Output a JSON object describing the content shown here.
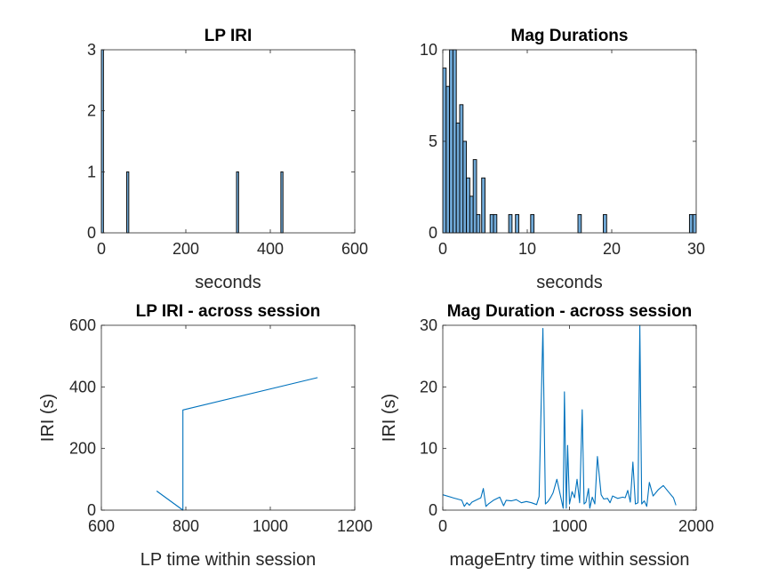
{
  "chart_data": [
    {
      "id": "lp-iri-hist",
      "type": "bar",
      "title": "LP IRI",
      "xlabel": "seconds",
      "ylabel": "",
      "xlim": [
        0,
        600
      ],
      "ylim": [
        0,
        3
      ],
      "xticks": [
        0,
        200,
        400,
        600
      ],
      "yticks": [
        0,
        1,
        2,
        3
      ],
      "bin_width": 5,
      "bins": [
        {
          "x": 0,
          "value": 3
        },
        {
          "x": 60,
          "value": 1
        },
        {
          "x": 320,
          "value": 1
        },
        {
          "x": 425,
          "value": 1
        }
      ],
      "bar_color": "#6fa8d6",
      "edge_color": "#000000"
    },
    {
      "id": "mag-dur-hist",
      "type": "bar",
      "title": "Mag Durations",
      "xlabel": "seconds",
      "ylabel": "",
      "xlim": [
        0,
        30
      ],
      "ylim": [
        0,
        10
      ],
      "xticks": [
        0,
        10,
        20,
        30
      ],
      "yticks": [
        0,
        5,
        10
      ],
      "bin_width": 0.4,
      "bins": [
        {
          "x": 0.0,
          "value": 9
        },
        {
          "x": 0.4,
          "value": 8
        },
        {
          "x": 0.8,
          "value": 10
        },
        {
          "x": 1.2,
          "value": 10
        },
        {
          "x": 1.6,
          "value": 6
        },
        {
          "x": 2.0,
          "value": 7
        },
        {
          "x": 2.4,
          "value": 5
        },
        {
          "x": 2.8,
          "value": 3
        },
        {
          "x": 3.2,
          "value": 2
        },
        {
          "x": 3.6,
          "value": 4
        },
        {
          "x": 4.0,
          "value": 1
        },
        {
          "x": 4.6,
          "value": 3
        },
        {
          "x": 5.6,
          "value": 1
        },
        {
          "x": 6.0,
          "value": 1
        },
        {
          "x": 7.8,
          "value": 1
        },
        {
          "x": 8.6,
          "value": 1
        },
        {
          "x": 10.4,
          "value": 1
        },
        {
          "x": 16.0,
          "value": 1
        },
        {
          "x": 19.0,
          "value": 1
        },
        {
          "x": 29.2,
          "value": 1
        },
        {
          "x": 29.6,
          "value": 1
        }
      ],
      "bar_color": "#6fa8d6",
      "edge_color": "#000000"
    },
    {
      "id": "lp-iri-session",
      "type": "line",
      "title": "LP IRI - across session",
      "xlabel": "LP time within session",
      "ylabel": "IRI (s)",
      "xlim": [
        600,
        1200
      ],
      "ylim": [
        0,
        600
      ],
      "xticks": [
        600,
        800,
        1000,
        1200
      ],
      "yticks": [
        0,
        200,
        400,
        600
      ],
      "series": [
        {
          "color": "#0072bd",
          "x": [
            731,
            793,
            793,
            1112
          ],
          "y": [
            62,
            0,
            325,
            430
          ]
        }
      ]
    },
    {
      "id": "mag-dur-session",
      "type": "line",
      "title": "Mag Duration - across session",
      "xlabel": "mageEntry time within session",
      "ylabel": "IRI (s)",
      "xlim": [
        0,
        2000
      ],
      "ylim": [
        0,
        30
      ],
      "xticks": [
        0,
        1000,
        2000
      ],
      "yticks": [
        0,
        10,
        20,
        30
      ],
      "series": [
        {
          "color": "#0072bd",
          "x": [
            0,
            80,
            150,
            170,
            190,
            210,
            230,
            280,
            300,
            320,
            340,
            360,
            400,
            450,
            480,
            500,
            540,
            580,
            620,
            660,
            700,
            740,
            760,
            790,
            810,
            830,
            850,
            870,
            900,
            950,
            960,
            975,
            985,
            1000,
            1020,
            1040,
            1060,
            1080,
            1100,
            1115,
            1130,
            1150,
            1160,
            1180,
            1200,
            1220,
            1250,
            1270,
            1300,
            1320,
            1340,
            1380,
            1420,
            1440,
            1460,
            1480,
            1500,
            1520,
            1540,
            1555,
            1570,
            1590,
            1610,
            1630,
            1660,
            1700,
            1740,
            1780,
            1820,
            1840
          ],
          "y": [
            2.5,
            2.0,
            1.6,
            0.6,
            1.2,
            0.8,
            1.3,
            1.8,
            2.0,
            3.5,
            0.6,
            1.0,
            1.6,
            2.1,
            0.7,
            1.6,
            1.5,
            1.7,
            1.2,
            1.4,
            1.2,
            0.9,
            2.2,
            29.5,
            1.0,
            1.4,
            2.0,
            2.8,
            5.0,
            0.3,
            19.2,
            0.3,
            10.5,
            1.0,
            3.0,
            2.0,
            5.0,
            1.2,
            16.3,
            1.0,
            1.3,
            3.5,
            0.3,
            2.1,
            1.0,
            8.7,
            2.5,
            1.8,
            1.9,
            1.2,
            2.3,
            1.9,
            2.1,
            2.0,
            3.2,
            1.3,
            7.8,
            1.0,
            1.2,
            30.0,
            1.0,
            1.5,
            0.6,
            4.5,
            2.3,
            3.3,
            4.0,
            3.0,
            2.0,
            0.8
          ]
        }
      ]
    }
  ]
}
